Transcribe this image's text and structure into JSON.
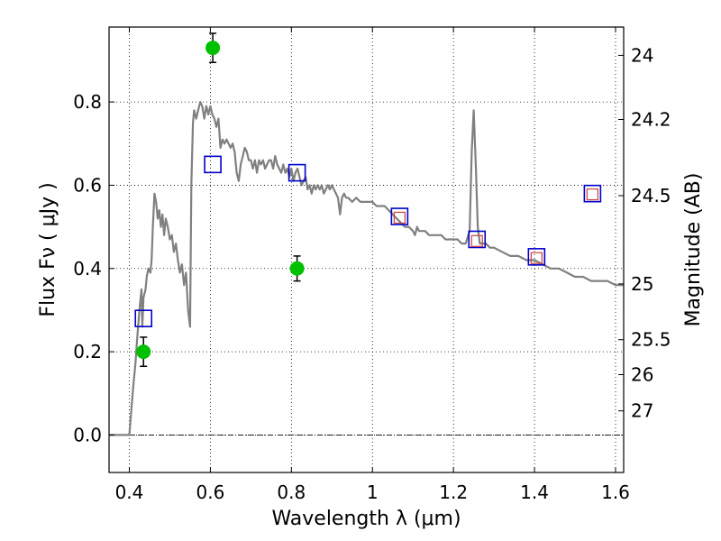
{
  "chart_data": {
    "type": "scatter",
    "xlabel": "Wavelength  λ (μm)",
    "ylabel": "Flux  Fν  ( μJy )",
    "y2label": "Magnitude (AB)",
    "xlim": [
      0.35,
      1.62
    ],
    "ylim": [
      -0.09,
      0.98
    ],
    "xticks": [
      0.4,
      0.6,
      0.8,
      1.0,
      1.2,
      1.4,
      1.6
    ],
    "xticklabels": [
      "0.4",
      "0.6",
      "0.8",
      "1",
      "1.2",
      "1.4",
      "1.6"
    ],
    "yticks": [
      0.0,
      0.2,
      0.4,
      0.6,
      0.8
    ],
    "yticklabels": [
      "0.0",
      "0.2",
      "0.4",
      "0.6",
      "0.8"
    ],
    "mag_ticks": [
      {
        "flux": 0.912,
        "label": "24"
      },
      {
        "flux": 0.758,
        "label": "24.2"
      },
      {
        "flux": 0.575,
        "label": "24.5"
      },
      {
        "flux": 0.363,
        "label": "25"
      },
      {
        "flux": 0.229,
        "label": "25.5"
      },
      {
        "flux": 0.145,
        "label": "26"
      },
      {
        "flux": 0.058,
        "label": "27"
      }
    ],
    "grid": true,
    "zero_line": true,
    "sed_model": {
      "color": "#808080",
      "points": [
        [
          0.35,
          0.0
        ],
        [
          0.4,
          0.0
        ],
        [
          0.405,
          0.06
        ],
        [
          0.41,
          0.12
        ],
        [
          0.415,
          0.17
        ],
        [
          0.42,
          0.24
        ],
        [
          0.425,
          0.3
        ],
        [
          0.43,
          0.35
        ],
        [
          0.432,
          0.26
        ],
        [
          0.435,
          0.33
        ],
        [
          0.44,
          0.35
        ],
        [
          0.443,
          0.38
        ],
        [
          0.447,
          0.4
        ],
        [
          0.452,
          0.39
        ],
        [
          0.455,
          0.42
        ],
        [
          0.458,
          0.5
        ],
        [
          0.462,
          0.58
        ],
        [
          0.466,
          0.56
        ],
        [
          0.47,
          0.52
        ],
        [
          0.474,
          0.54
        ],
        [
          0.478,
          0.5
        ],
        [
          0.482,
          0.53
        ],
        [
          0.486,
          0.48
        ],
        [
          0.49,
          0.52
        ],
        [
          0.495,
          0.5
        ],
        [
          0.5,
          0.47
        ],
        [
          0.505,
          0.48
        ],
        [
          0.51,
          0.44
        ],
        [
          0.515,
          0.46
        ],
        [
          0.52,
          0.42
        ],
        [
          0.525,
          0.39
        ],
        [
          0.53,
          0.41
        ],
        [
          0.535,
          0.36
        ],
        [
          0.54,
          0.39
        ],
        [
          0.545,
          0.3
        ],
        [
          0.55,
          0.26
        ],
        [
          0.553,
          0.6
        ],
        [
          0.557,
          0.75
        ],
        [
          0.56,
          0.78
        ],
        [
          0.565,
          0.76
        ],
        [
          0.57,
          0.78
        ],
        [
          0.575,
          0.8
        ],
        [
          0.58,
          0.79
        ],
        [
          0.585,
          0.76
        ],
        [
          0.59,
          0.79
        ],
        [
          0.595,
          0.77
        ],
        [
          0.6,
          0.79
        ],
        [
          0.605,
          0.77
        ],
        [
          0.61,
          0.76
        ],
        [
          0.615,
          0.74
        ],
        [
          0.62,
          0.76
        ],
        [
          0.625,
          0.69
        ],
        [
          0.63,
          0.71
        ],
        [
          0.635,
          0.7
        ],
        [
          0.64,
          0.71
        ],
        [
          0.645,
          0.7
        ],
        [
          0.65,
          0.69
        ],
        [
          0.655,
          0.7
        ],
        [
          0.66,
          0.68
        ],
        [
          0.665,
          0.63
        ],
        [
          0.67,
          0.61
        ],
        [
          0.675,
          0.65
        ],
        [
          0.68,
          0.67
        ],
        [
          0.685,
          0.69
        ],
        [
          0.69,
          0.68
        ],
        [
          0.695,
          0.66
        ],
        [
          0.7,
          0.66
        ],
        [
          0.705,
          0.64
        ],
        [
          0.71,
          0.66
        ],
        [
          0.715,
          0.63
        ],
        [
          0.72,
          0.66
        ],
        [
          0.725,
          0.65
        ],
        [
          0.73,
          0.66
        ],
        [
          0.735,
          0.64
        ],
        [
          0.74,
          0.65
        ],
        [
          0.745,
          0.66
        ],
        [
          0.75,
          0.66
        ],
        [
          0.755,
          0.64
        ],
        [
          0.76,
          0.67
        ],
        [
          0.765,
          0.65
        ],
        [
          0.77,
          0.64
        ],
        [
          0.775,
          0.63
        ],
        [
          0.78,
          0.65
        ],
        [
          0.785,
          0.63
        ],
        [
          0.79,
          0.64
        ],
        [
          0.795,
          0.62
        ],
        [
          0.8,
          0.64
        ],
        [
          0.805,
          0.61
        ],
        [
          0.81,
          0.63
        ],
        [
          0.815,
          0.64
        ],
        [
          0.82,
          0.62
        ],
        [
          0.825,
          0.6
        ],
        [
          0.83,
          0.61
        ],
        [
          0.835,
          0.62
        ],
        [
          0.84,
          0.59
        ],
        [
          0.845,
          0.6
        ],
        [
          0.85,
          0.58
        ],
        [
          0.855,
          0.6
        ],
        [
          0.86,
          0.59
        ],
        [
          0.865,
          0.6
        ],
        [
          0.87,
          0.59
        ],
        [
          0.875,
          0.6
        ],
        [
          0.88,
          0.58
        ],
        [
          0.885,
          0.59
        ],
        [
          0.89,
          0.6
        ],
        [
          0.895,
          0.59
        ],
        [
          0.9,
          0.6
        ],
        [
          0.905,
          0.59
        ],
        [
          0.91,
          0.58
        ],
        [
          0.915,
          0.57
        ],
        [
          0.92,
          0.53
        ],
        [
          0.925,
          0.57
        ],
        [
          0.93,
          0.58
        ],
        [
          0.935,
          0.57
        ],
        [
          0.94,
          0.57
        ],
        [
          0.95,
          0.56
        ],
        [
          0.96,
          0.57
        ],
        [
          0.97,
          0.56
        ],
        [
          0.98,
          0.56
        ],
        [
          0.99,
          0.56
        ],
        [
          1.0,
          0.56
        ],
        [
          1.01,
          0.55
        ],
        [
          1.02,
          0.55
        ],
        [
          1.03,
          0.55
        ],
        [
          1.04,
          0.54
        ],
        [
          1.05,
          0.53
        ],
        [
          1.06,
          0.52
        ],
        [
          1.07,
          0.51
        ],
        [
          1.08,
          0.5
        ],
        [
          1.09,
          0.5
        ],
        [
          1.1,
          0.49
        ],
        [
          1.105,
          0.48
        ],
        [
          1.11,
          0.5
        ],
        [
          1.115,
          0.49
        ],
        [
          1.12,
          0.49
        ],
        [
          1.13,
          0.49
        ],
        [
          1.14,
          0.48
        ],
        [
          1.15,
          0.48
        ],
        [
          1.16,
          0.48
        ],
        [
          1.17,
          0.48
        ],
        [
          1.18,
          0.47
        ],
        [
          1.19,
          0.47
        ],
        [
          1.2,
          0.47
        ],
        [
          1.21,
          0.47
        ],
        [
          1.22,
          0.46
        ],
        [
          1.23,
          0.46
        ],
        [
          1.24,
          0.49
        ],
        [
          1.245,
          0.68
        ],
        [
          1.25,
          0.78
        ],
        [
          1.255,
          0.65
        ],
        [
          1.26,
          0.5
        ],
        [
          1.265,
          0.46
        ],
        [
          1.27,
          0.46
        ],
        [
          1.28,
          0.46
        ],
        [
          1.29,
          0.45
        ],
        [
          1.3,
          0.45
        ],
        [
          1.32,
          0.44
        ],
        [
          1.34,
          0.43
        ],
        [
          1.36,
          0.43
        ],
        [
          1.38,
          0.42
        ],
        [
          1.4,
          0.42
        ],
        [
          1.42,
          0.41
        ],
        [
          1.44,
          0.4
        ],
        [
          1.46,
          0.4
        ],
        [
          1.48,
          0.39
        ],
        [
          1.5,
          0.38
        ],
        [
          1.52,
          0.38
        ],
        [
          1.54,
          0.37
        ],
        [
          1.56,
          0.37
        ],
        [
          1.58,
          0.37
        ],
        [
          1.6,
          0.36
        ],
        [
          1.62,
          0.36
        ]
      ]
    },
    "observed": {
      "color": "#00c000",
      "points": [
        {
          "x": 0.435,
          "y": 0.2,
          "err": 0.035
        },
        {
          "x": 0.606,
          "y": 0.93,
          "err": 0.035
        },
        {
          "x": 0.814,
          "y": 0.4,
          "err": 0.03
        }
      ]
    },
    "model_photometry": {
      "color": "#0000cc",
      "points": [
        [
          0.435,
          0.28
        ],
        [
          0.606,
          0.65
        ],
        [
          0.814,
          0.63
        ],
        [
          1.067,
          0.525
        ],
        [
          1.258,
          0.47
        ],
        [
          1.405,
          0.428
        ],
        [
          1.543,
          0.58
        ]
      ]
    },
    "ir_points": {
      "color": "#d04040",
      "points": [
        [
          1.067,
          0.522
        ],
        [
          1.258,
          0.466
        ],
        [
          1.405,
          0.425
        ],
        [
          1.543,
          0.578
        ]
      ]
    }
  }
}
